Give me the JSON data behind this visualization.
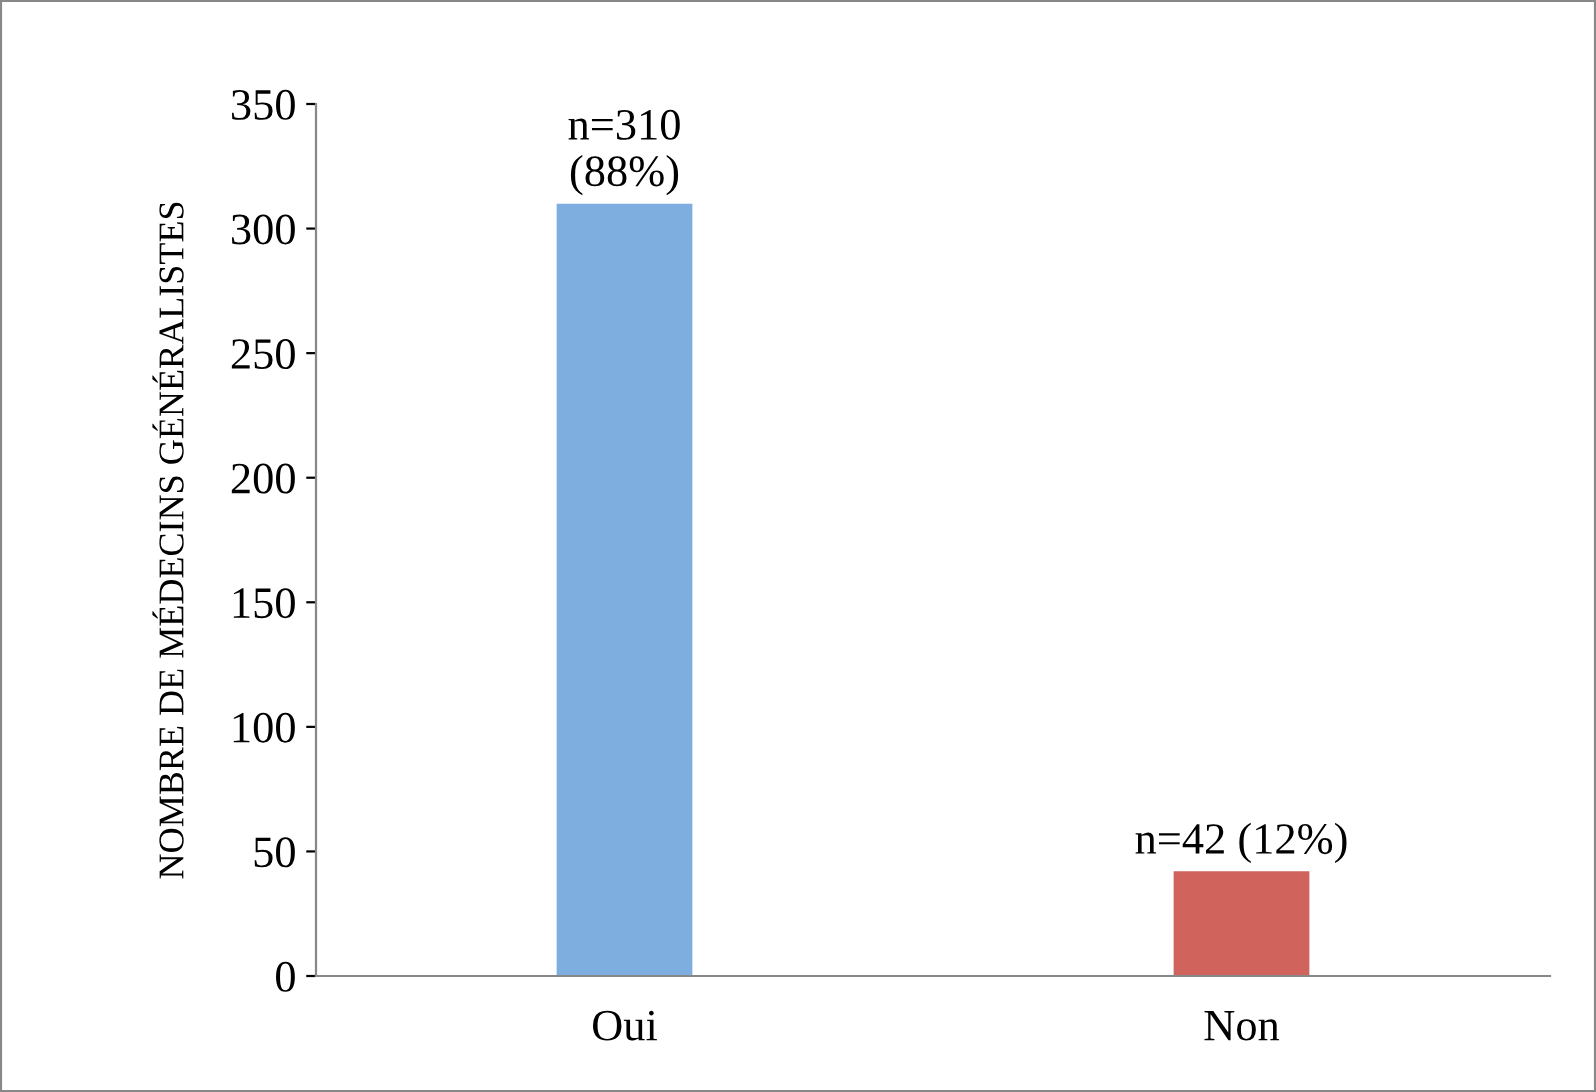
{
  "chart_data": {
    "type": "bar",
    "categories": [
      "Oui",
      "Non"
    ],
    "values": [
      310,
      42
    ],
    "colors": [
      "#7eaee0",
      "#d0635b"
    ],
    "value_labels": [
      "n=310\n(88%)",
      "n=42 (12%)"
    ],
    "ylabel": "NOMBRE DE MÉDECINS GÉNÉRALISTES",
    "ylim": [
      0,
      350
    ],
    "yticks": [
      0,
      50,
      100,
      150,
      200,
      250,
      300,
      350
    ],
    "grid": false,
    "legend": false
  }
}
